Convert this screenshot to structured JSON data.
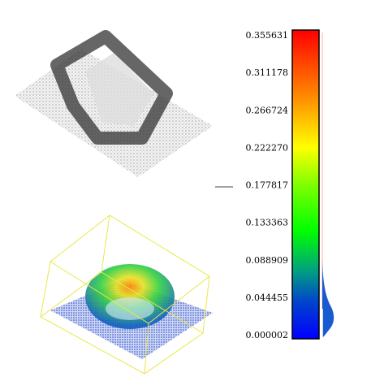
{
  "color_scale": {
    "labels": [
      "0.355631",
      "0.311178",
      "0.266724",
      "0.222270",
      "0.177817",
      "0.133363",
      "0.088909",
      "0.044455",
      "0.000002"
    ]
  }
}
